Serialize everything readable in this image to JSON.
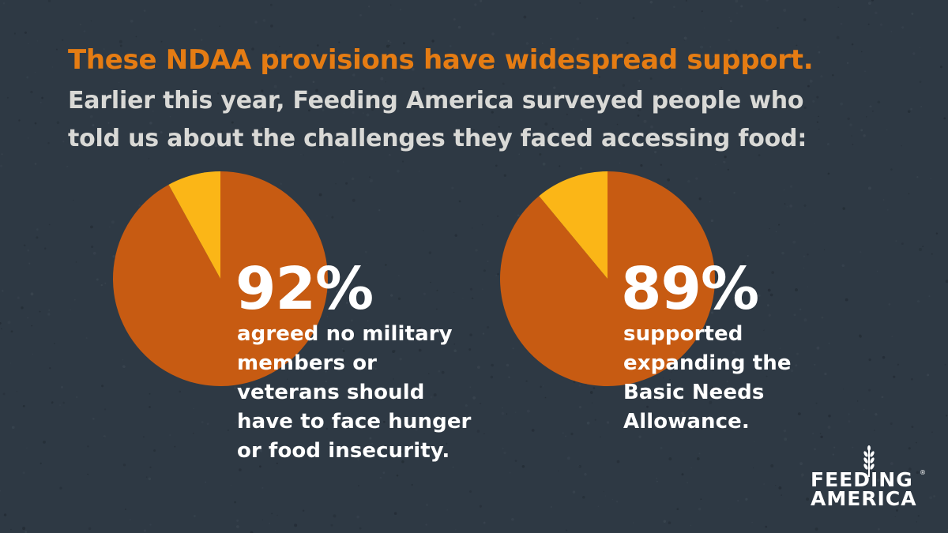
{
  "colors": {
    "background": "#2e3944",
    "headline": "#e57c13",
    "subhead": "#d9d9d6",
    "pie_main": "#c75b12",
    "pie_other": "#fbb617",
    "text": "#ffffff"
  },
  "headline": "These NDAA provisions have widespread support.",
  "subhead_lines": [
    "Earlier this year, Feeding America surveyed people who",
    "told us about the challenges they faced accessing food:"
  ],
  "chart_data": [
    {
      "type": "pie",
      "categories": [
        "agreed",
        "other"
      ],
      "values": [
        92,
        8
      ],
      "label": "92%",
      "description_lines": [
        "agreed no military",
        "members or",
        "veterans should",
        "have to face hunger",
        "or food insecurity."
      ],
      "colors": [
        "#c75b12",
        "#fbb617"
      ]
    },
    {
      "type": "pie",
      "categories": [
        "supported",
        "other"
      ],
      "values": [
        89,
        11
      ],
      "label": "89%",
      "description_lines": [
        "supported",
        "expanding the",
        "Basic Needs",
        "Allowance."
      ],
      "colors": [
        "#c75b12",
        "#fbb617"
      ]
    }
  ],
  "logo": {
    "line1": "FEEDING",
    "line2": "AMERICA",
    "icon": "wheat-icon",
    "registered": "®"
  }
}
